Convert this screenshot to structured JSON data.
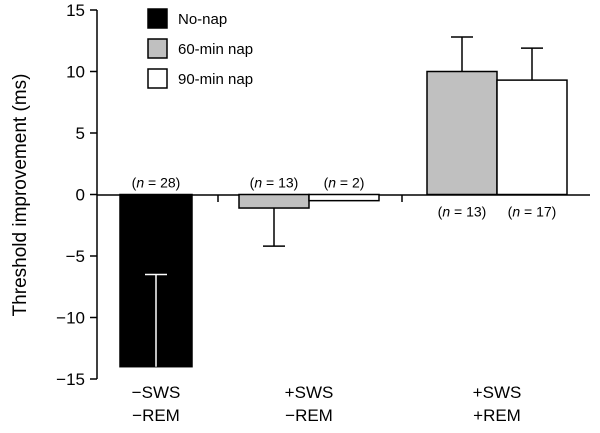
{
  "chart_data": {
    "type": "bar",
    "title": "",
    "xlabel": "",
    "ylabel": "Threshold improvement (ms)",
    "ylim": [
      -15,
      15
    ],
    "yticks": [
      "15",
      "10",
      "5",
      "0",
      "−5",
      "−10",
      "−15"
    ],
    "ytick_values": [
      15,
      10,
      5,
      0,
      -5,
      -10,
      -15
    ],
    "grid": false,
    "legend_position": "top-left",
    "legend": [
      {
        "name": "No-nap",
        "color": "#000000"
      },
      {
        "name": "60-min nap",
        "color": "#c0c0c0"
      },
      {
        "name": "90-min nap",
        "color": "#ffffff"
      }
    ],
    "categories": [
      {
        "line1": "−SWS",
        "line2": "−REM"
      },
      {
        "line1": "+SWS",
        "line2": "−REM"
      },
      {
        "line1": "+SWS",
        "line2": "+REM"
      }
    ],
    "bars": [
      {
        "group": 0,
        "series": "No-nap",
        "color": "#000000",
        "value": -14.0,
        "error": 7.5,
        "error_dir": "up",
        "n_label": "(n = 28)",
        "n_pos": "above",
        "whisker_color": "#ffffff"
      },
      {
        "group": 1,
        "series": "60-min nap",
        "color": "#c0c0c0",
        "value": -1.1,
        "error": 3.1,
        "error_dir": "down",
        "n_label": "(n = 13)",
        "n_pos": "above",
        "whisker_color": "#000000"
      },
      {
        "group": 1,
        "series": "90-min nap",
        "color": "#ffffff",
        "value": -0.5,
        "error": 0,
        "error_dir": "none",
        "n_label": "(n = 2)",
        "n_pos": "above",
        "whisker_color": "#000000"
      },
      {
        "group": 2,
        "series": "60-min nap",
        "color": "#c0c0c0",
        "value": 10.0,
        "error": 2.8,
        "error_dir": "up",
        "n_label": "(n = 13)",
        "n_pos": "below",
        "whisker_color": "#000000"
      },
      {
        "group": 2,
        "series": "90-min nap",
        "color": "#ffffff",
        "value": 9.3,
        "error": 2.6,
        "error_dir": "up",
        "n_label": "(n = 17)",
        "n_pos": "below",
        "whisker_color": "#000000"
      }
    ]
  }
}
